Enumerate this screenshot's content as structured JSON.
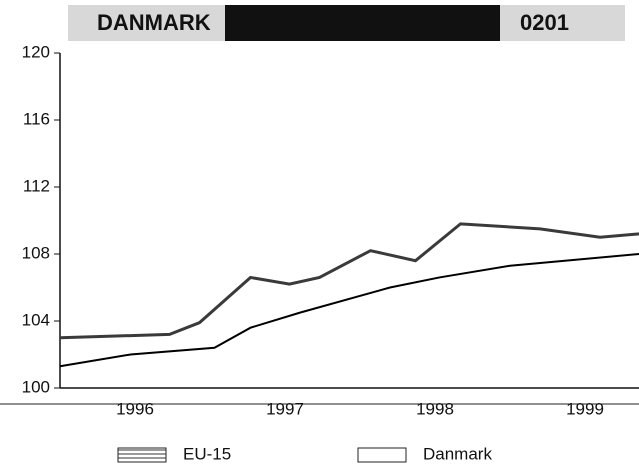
{
  "chart_data": {
    "type": "line",
    "title": "DANMARK",
    "subtitle": "0201",
    "series": [
      {
        "name": "EU-15",
        "color": "#3a3a3a",
        "x": [
          1996.0,
          1996.73,
          1996.93,
          1997.27,
          1997.53,
          1997.73,
          1998.07,
          1998.37,
          1998.67,
          1999.2,
          1999.6,
          1999.86
        ],
        "values": [
          103.0,
          103.2,
          103.9,
          106.6,
          106.2,
          106.6,
          108.2,
          107.6,
          109.8,
          109.5,
          109.0,
          109.2
        ]
      },
      {
        "name": "Danmark",
        "color": "#000000",
        "x": [
          1996.0,
          1996.47,
          1997.03,
          1997.27,
          1997.6,
          1998.2,
          1998.53,
          1999.0,
          1999.86
        ],
        "values": [
          101.3,
          102.0,
          102.4,
          103.6,
          104.5,
          106.0,
          106.6,
          107.3,
          108.0
        ]
      }
    ],
    "xlim": [
      1996,
      1999.86
    ],
    "xticks": [
      {
        "value": 1996.5,
        "label": "1996"
      },
      {
        "value": 1997.5,
        "label": "1997"
      },
      {
        "value": 1998.5,
        "label": "1998"
      },
      {
        "value": 1999.5,
        "label": "1999"
      }
    ],
    "ylim": [
      100,
      120
    ],
    "yticks": [
      100,
      104,
      108,
      112,
      116,
      120
    ],
    "legend": "bottom"
  }
}
